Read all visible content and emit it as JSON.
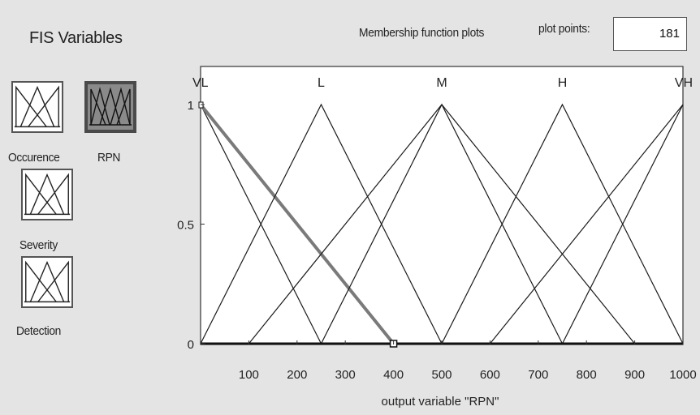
{
  "sidebar": {
    "title": "FIS Variables",
    "variables": [
      {
        "label": "Occurence",
        "selected": false
      },
      {
        "label": "RPN",
        "selected": true
      },
      {
        "label": "Severity",
        "selected": false
      },
      {
        "label": "Detection",
        "selected": false
      }
    ]
  },
  "header": {
    "plot_title": "Membership function plots",
    "plot_points_label": "plot points:",
    "plot_points_value": "181"
  },
  "chart_data": {
    "type": "line",
    "xlabel": "output variable \"RPN\"",
    "xlim": [
      0,
      1000
    ],
    "ylim": [
      0,
      1
    ],
    "x_ticks": [
      "100",
      "200",
      "300",
      "400",
      "500",
      "600",
      "700",
      "800",
      "900",
      "1000"
    ],
    "y_ticks": [
      "0",
      "0.5",
      "1"
    ],
    "membership_functions": [
      {
        "name": "VL",
        "label": "VL",
        "shape": "trimf",
        "points": [
          0,
          0,
          250
        ],
        "highlighted": false
      },
      {
        "name": "VL-ext",
        "label": "",
        "shape": "trimf",
        "points": [
          0,
          0,
          400
        ],
        "highlighted": true
      },
      {
        "name": "L",
        "label": "L",
        "shape": "trimf",
        "points": [
          0,
          250,
          500
        ],
        "highlighted": false
      },
      {
        "name": "M",
        "label": "M",
        "shape": "trimf",
        "points": [
          250,
          500,
          750
        ],
        "highlighted": false
      },
      {
        "name": "M-wide",
        "label": "",
        "shape": "trimf",
        "points": [
          100,
          500,
          900
        ],
        "highlighted": false
      },
      {
        "name": "H",
        "label": "H",
        "shape": "trimf",
        "points": [
          500,
          750,
          1000
        ],
        "highlighted": false
      },
      {
        "name": "VH",
        "label": "VH",
        "shape": "trimf",
        "points": [
          750,
          1000,
          1000
        ],
        "highlighted": false
      },
      {
        "name": "VH-ext",
        "label": "",
        "shape": "trimf",
        "points": [
          600,
          1000,
          1000
        ],
        "highlighted": false
      }
    ],
    "mf_labels": [
      {
        "text": "VL",
        "x": 0
      },
      {
        "text": "L",
        "x": 250
      },
      {
        "text": "M",
        "x": 500
      },
      {
        "text": "H",
        "x": 750
      },
      {
        "text": "VH",
        "x": 1000
      }
    ],
    "grid": false,
    "colors": {
      "line": "#1a1a1a",
      "highlight": "#7a7a7a"
    }
  }
}
